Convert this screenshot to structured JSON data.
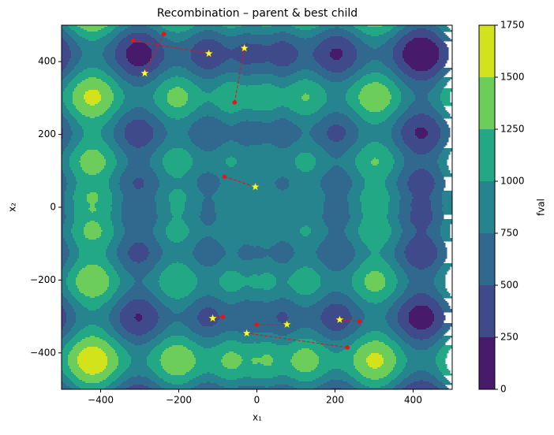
{
  "chart_data": {
    "type": "contour-scatter",
    "title": "Recombination – parent & best child",
    "xlabel": "x₁",
    "ylabel": "x₂",
    "xlim": [
      -500,
      500
    ],
    "ylim": [
      -500,
      500
    ],
    "xticks": [
      {
        "value": -400,
        "label": "−400"
      },
      {
        "value": -200,
        "label": "−200"
      },
      0,
      200,
      400
    ],
    "yticks": [
      {
        "value": -400,
        "label": "−400"
      },
      {
        "value": -200,
        "label": "−200"
      },
      0,
      200,
      400
    ],
    "colorbar": {
      "label": "fval",
      "levels": [
        0,
        250,
        500,
        750,
        1000,
        1250,
        1500,
        1750
      ],
      "colors": [
        "#481a6c",
        "#3e4a89",
        "#30688e",
        "#25848e",
        "#22a884",
        "#6ccd5a",
        "#d2e21b"
      ]
    },
    "parents": {
      "color": "#e8141a",
      "x": [
        -317,
        -238,
        -57,
        -83,
        -87,
        0,
        263,
        232
      ],
      "y": [
        458,
        476,
        288,
        84,
        -301,
        -322,
        -314,
        -385
      ]
    },
    "children": {
      "color": "#ffff33",
      "x": [
        -123,
        -287,
        -32,
        -4,
        -113,
        77,
        212,
        -26
      ],
      "y": [
        422,
        368,
        437,
        56,
        -305,
        -322,
        -309,
        -346
      ]
    }
  }
}
